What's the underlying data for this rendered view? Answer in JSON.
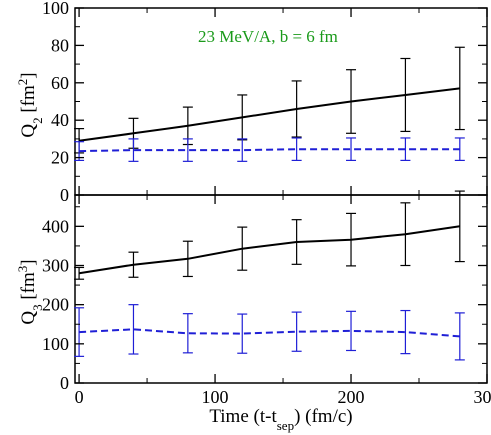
{
  "colors": {
    "black": "#000000",
    "blue": "#1f1fd6",
    "green": "#1a9a1a"
  },
  "chart_data": [
    {
      "type": "line",
      "panel": "top",
      "annotation": "23 MeV/A, b = 6 fm",
      "ylabel": {
        "main": "Q",
        "sub": "2",
        "unit_open": " [fm",
        "unit_sup": "2",
        "unit_close": "]"
      },
      "ylim": [
        0,
        100
      ],
      "yticks": [
        "0",
        "20",
        "40",
        "60",
        "80",
        "100"
      ],
      "xlim": [
        -3,
        300
      ],
      "grid": false,
      "series": [
        {
          "color": "black",
          "style": "solid",
          "x": [
            0,
            40,
            80,
            120,
            160,
            200,
            240,
            280
          ],
          "y": [
            29,
            33,
            37,
            41.5,
            46,
            50,
            53.5,
            57
          ],
          "err": [
            6.5,
            8,
            10,
            12,
            15,
            17,
            19.5,
            22
          ]
        },
        {
          "color": "blue",
          "style": "dashed",
          "x": [
            0,
            40,
            80,
            120,
            160,
            200,
            240,
            280
          ],
          "y": [
            23.5,
            24,
            24,
            24,
            24.5,
            24.5,
            24.5,
            24.5
          ],
          "err": [
            5,
            6,
            6,
            6,
            6,
            6,
            6,
            6
          ]
        }
      ]
    },
    {
      "type": "line",
      "panel": "bottom",
      "ylabel": {
        "main": "Q",
        "sub": "3",
        "unit_open": " [fm",
        "unit_sup": "3",
        "unit_close": "]"
      },
      "xlabel": {
        "main": "Time (t-t",
        "sub": "sep",
        "tail": ") (fm/c)"
      },
      "ylim": [
        0,
        480
      ],
      "yticks": [
        "0",
        "100",
        "200",
        "300",
        "400"
      ],
      "xlim": [
        -3,
        300
      ],
      "xticks": [
        "0",
        "100",
        "200",
        "300"
      ],
      "grid": false,
      "series": [
        {
          "color": "black",
          "style": "solid",
          "x": [
            0,
            40,
            80,
            120,
            160,
            200,
            240,
            280
          ],
          "y": [
            280,
            302,
            317,
            343,
            360,
            366,
            380,
            400
          ],
          "err": [
            15,
            32,
            45,
            55,
            57,
            67,
            80,
            90
          ]
        },
        {
          "color": "blue",
          "style": "dashed",
          "x": [
            0,
            40,
            80,
            120,
            160,
            200,
            240,
            280
          ],
          "y": [
            130,
            137,
            127,
            126,
            131,
            133,
            130,
            119
          ],
          "err": [
            62,
            63,
            50,
            50,
            50,
            50,
            55,
            60
          ]
        }
      ]
    }
  ]
}
